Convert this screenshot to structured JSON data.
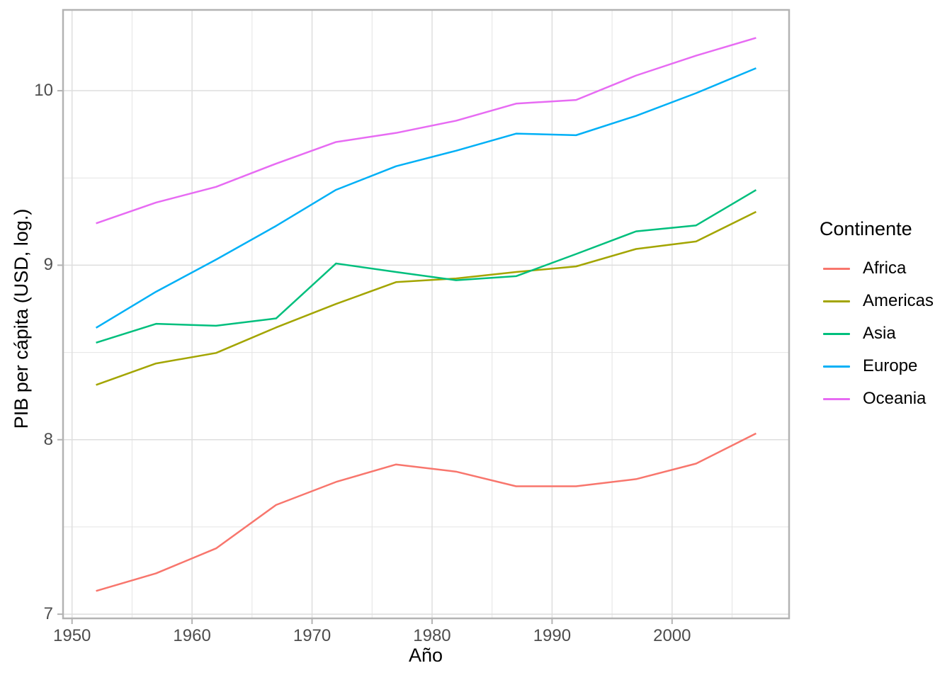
{
  "chart_data": {
    "type": "line",
    "title": "",
    "xlabel": "Año",
    "ylabel": "PIB per cápita (USD, log.)",
    "x": [
      1952,
      1957,
      1962,
      1967,
      1972,
      1977,
      1982,
      1987,
      1992,
      1997,
      2002,
      2007
    ],
    "series": [
      {
        "name": "Africa",
        "color": "#F8766D",
        "values": [
          7.133,
          7.234,
          7.377,
          7.626,
          7.758,
          7.858,
          7.817,
          7.733,
          7.733,
          7.774,
          7.863,
          8.036
        ]
      },
      {
        "name": "Americas",
        "color": "#A3A500",
        "values": [
          8.314,
          8.437,
          8.497,
          8.643,
          8.778,
          8.903,
          8.924,
          8.961,
          8.993,
          9.093,
          9.136,
          9.306
        ]
      },
      {
        "name": "Asia",
        "color": "#00BF7D",
        "values": [
          8.556,
          8.664,
          8.653,
          8.695,
          9.01,
          8.961,
          8.914,
          8.937,
          9.064,
          9.194,
          9.228,
          9.431
        ]
      },
      {
        "name": "Europe",
        "color": "#00B0F6",
        "values": [
          8.641,
          8.848,
          9.032,
          9.225,
          9.432,
          9.567,
          9.656,
          9.754,
          9.745,
          9.856,
          9.986,
          10.129
        ]
      },
      {
        "name": "Oceania",
        "color": "#E76BF3",
        "values": [
          9.24,
          9.359,
          9.449,
          9.582,
          9.706,
          9.758,
          9.828,
          9.926,
          9.947,
          10.087,
          10.201,
          10.303
        ]
      }
    ],
    "xlim": [
      1949.25,
      2009.75
    ],
    "ylim": [
      6.976,
      10.463
    ],
    "x_ticks": {
      "values": [
        1950,
        1960,
        1970,
        1980,
        1990,
        2000
      ],
      "labels": [
        "1950",
        "1960",
        "1970",
        "1980",
        "1990",
        "2000"
      ]
    },
    "x_minor_ticks": [
      1955,
      1965,
      1975,
      1985,
      1995,
      2005
    ],
    "y_ticks": {
      "values": [
        7,
        8,
        9,
        10
      ],
      "labels": [
        "7",
        "8",
        "9",
        "10"
      ]
    },
    "y_minor_ticks": [
      7.5,
      8.5,
      9.5
    ],
    "grid": true,
    "legend": {
      "title": "Continente",
      "position": "right",
      "entries": [
        "Africa",
        "Americas",
        "Asia",
        "Europe",
        "Oceania"
      ]
    },
    "style_colors": {
      "panel_border": "#B3B3B3",
      "grid_major": "#DEDEDE",
      "grid_minor": "#E4E4E4",
      "tick_mark": "#B3B3B3",
      "tick_text": "#4D4D4D",
      "title_text": "#000000",
      "background": "#FFFFFF"
    }
  }
}
